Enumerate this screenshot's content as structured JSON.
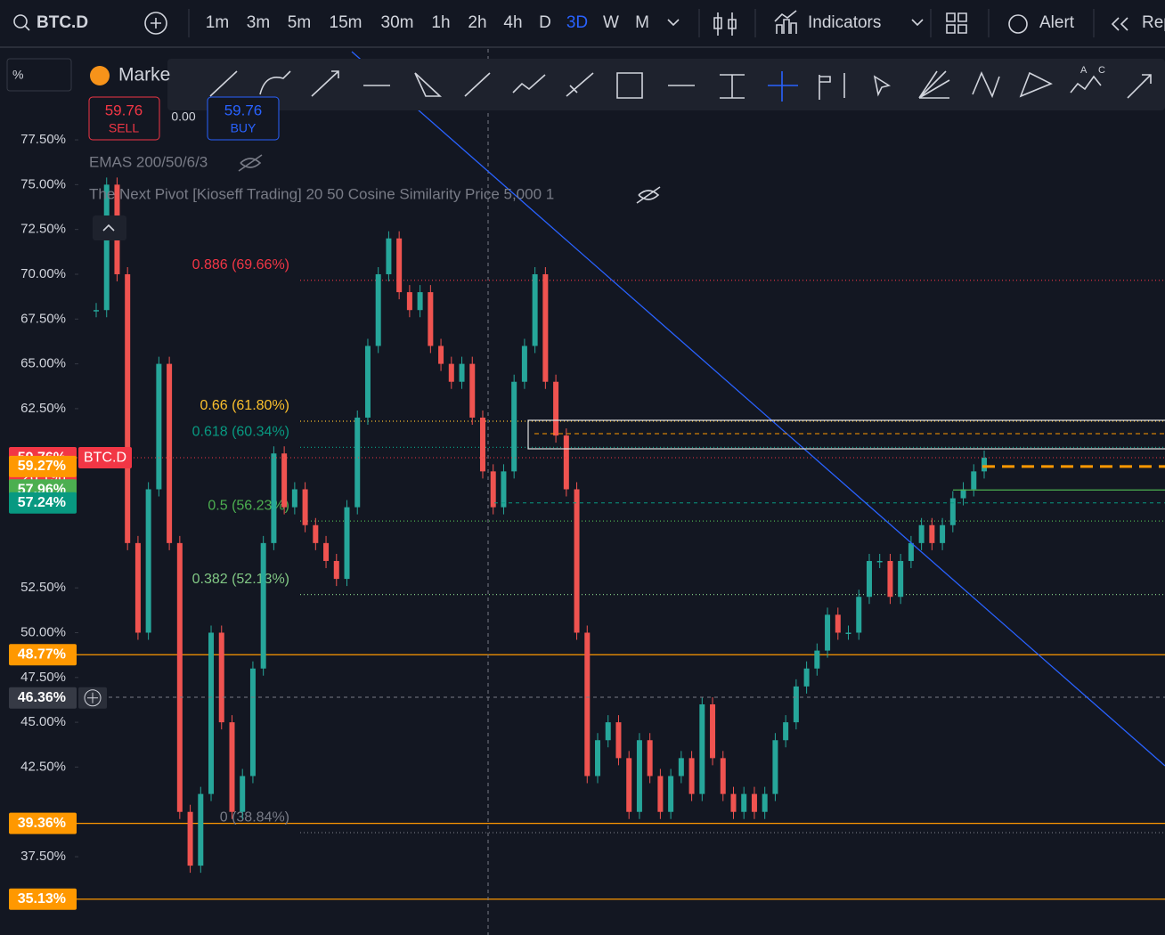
{
  "toolbar": {
    "symbol": "BTC.D",
    "timeframes": [
      "1m",
      "3m",
      "5m",
      "15m",
      "30m",
      "1h",
      "2h",
      "4h",
      "D",
      "3D",
      "W",
      "M"
    ],
    "active_timeframe": "3D",
    "indicators": "Indicators",
    "alert": "Alert",
    "replay": "Rep"
  },
  "legend": {
    "scale_mode": "%",
    "market": "Marke",
    "sell_price": "59.76",
    "sell_label": "SELL",
    "spread": "0.00",
    "buy_price": "59.76",
    "buy_label": "BUY",
    "indicators": [
      "EMAS 200/50/6/3",
      "The Next Pivot [Kioseff Trading] 20 50 Cosine Similarity Price 5,000 1"
    ]
  },
  "chart_data": {
    "type": "candlestick-line",
    "name": "BTC.D",
    "ylim": [
      33.13,
      82.57
    ],
    "yticks": [
      {
        "value": 37.5,
        "label": "37.50%"
      },
      {
        "value": 42.5,
        "label": "42.50%"
      },
      {
        "value": 45,
        "label": "45.00%"
      },
      {
        "value": 47.5,
        "label": "47.50%"
      },
      {
        "value": 50,
        "label": "50.00%"
      },
      {
        "value": 52.5,
        "label": "52.50%"
      },
      {
        "value": 62.5,
        "label": "62.50%"
      },
      {
        "value": 65,
        "label": "65.00%"
      },
      {
        "value": 67.5,
        "label": "67.50%"
      },
      {
        "value": 70,
        "label": "70.00%"
      },
      {
        "value": 72.5,
        "label": "72.50%"
      },
      {
        "value": 75,
        "label": "75.00%"
      },
      {
        "value": 77.5,
        "label": "77.50%"
      }
    ],
    "up_color": "#26a69a",
    "down_color": "#ef5350",
    "values": [
      68,
      75,
      70,
      55,
      50,
      58,
      65,
      55,
      40,
      37,
      41,
      50,
      45,
      40,
      42,
      48,
      55,
      60,
      57,
      58,
      56,
      55,
      54,
      53,
      57,
      62,
      66,
      70,
      72,
      69,
      68,
      69,
      66,
      65,
      64,
      65,
      62,
      59,
      57,
      59,
      64,
      66,
      70,
      64,
      61,
      58,
      50,
      42,
      44,
      45,
      43,
      40,
      44,
      42,
      40,
      42,
      43,
      41,
      46,
      43,
      41,
      40,
      41,
      40,
      41,
      44,
      45,
      47,
      48,
      49,
      51,
      50,
      50,
      52,
      54,
      54,
      52,
      54,
      55,
      56,
      55,
      56,
      57.5,
      58,
      59,
      59.76
    ],
    "fib_levels": [
      {
        "value": 69.66,
        "label": "0.886 (69.66%)",
        "color": "#f23645"
      },
      {
        "value": 61.8,
        "label": "0.66 (61.80%)",
        "color": "#fbc02d"
      },
      {
        "value": 60.34,
        "label": "0.618 (60.34%)",
        "color": "#089981"
      },
      {
        "value": 56.23,
        "label": "0.5 (56.23%)",
        "color": "#4caf50"
      },
      {
        "value": 52.13,
        "label": "0.382 (52.13%)",
        "color": "#81c784"
      },
      {
        "value": 38.84,
        "label": "0 (38.84%)",
        "color": "#787b86"
      }
    ],
    "levels": [
      {
        "value": 48.77,
        "color": "#ff9800"
      },
      {
        "value": 39.36,
        "color": "#ff9800"
      },
      {
        "value": 35.13,
        "color": "#ff9800"
      }
    ],
    "price_tags": [
      {
        "value": 59.76,
        "label": "59.76%",
        "color": "#f23645",
        "tag": "BTC.D",
        "countdown": "2d 19h"
      },
      {
        "value": 59.27,
        "label": "59.27%",
        "color": "#ff9800"
      },
      {
        "value": 57.96,
        "label": "57.96%",
        "color": "#4caf50"
      },
      {
        "value": 57.24,
        "label": "57.24%",
        "color": "#089981"
      },
      {
        "value": 48.77,
        "label": "48.77%",
        "color": "#ff9800"
      },
      {
        "value": 46.36,
        "label": "46.36%",
        "color": "#363a45"
      },
      {
        "value": 39.36,
        "label": "39.36%",
        "color": "#ff9800"
      },
      {
        "value": 35.13,
        "label": "35.13%",
        "color": "#ff9800"
      }
    ]
  }
}
